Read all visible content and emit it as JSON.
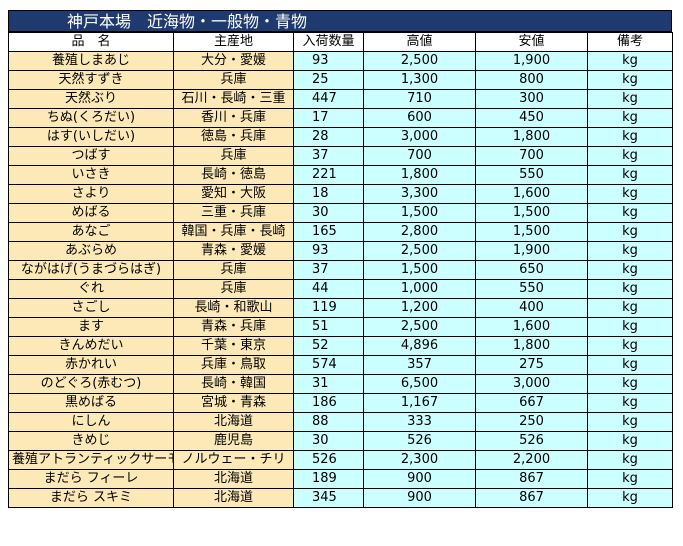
{
  "title": "神戸本場　近海物・一般物・青物",
  "headers": [
    "品　名",
    "主産地",
    "入荷数量",
    "高値",
    "安値",
    "備考"
  ],
  "rows": [
    {
      "name": "養殖しまあじ",
      "origin": "大分・愛媛",
      "qty": "93",
      "high": "2,500",
      "low": "1,900",
      "unit": "kg"
    },
    {
      "name": "天然すずき",
      "origin": "兵庫",
      "qty": "25",
      "high": "1,300",
      "low": "800",
      "unit": "kg"
    },
    {
      "name": "天然ぶり",
      "origin": "石川・長崎・三重",
      "qty": "447",
      "high": "710",
      "low": "300",
      "unit": "kg"
    },
    {
      "name": "ちぬ(くろだい)",
      "origin": "香川・兵庫",
      "qty": "17",
      "high": "600",
      "low": "450",
      "unit": "kg"
    },
    {
      "name": "はす(いしだい)",
      "origin": "徳島・兵庫",
      "qty": "28",
      "high": "3,000",
      "low": "1,800",
      "unit": "kg"
    },
    {
      "name": "つばす",
      "origin": "兵庫",
      "qty": "37",
      "high": "700",
      "low": "700",
      "unit": "kg"
    },
    {
      "name": "いさき",
      "origin": "長崎・徳島",
      "qty": "221",
      "high": "1,800",
      "low": "550",
      "unit": "kg"
    },
    {
      "name": "さより",
      "origin": "愛知・大阪",
      "qty": "18",
      "high": "3,300",
      "low": "1,600",
      "unit": "kg"
    },
    {
      "name": "めばる",
      "origin": "三重・兵庫",
      "qty": "30",
      "high": "1,500",
      "low": "1,500",
      "unit": "kg"
    },
    {
      "name": "あなご",
      "origin": "韓国・兵庫・長崎",
      "qty": "165",
      "high": "2,800",
      "low": "1,500",
      "unit": "kg"
    },
    {
      "name": "あぶらめ",
      "origin": "青森・愛媛",
      "qty": "93",
      "high": "2,500",
      "low": "1,900",
      "unit": "kg"
    },
    {
      "name": "ながはげ(うまづらはぎ)",
      "origin": "兵庫",
      "qty": "37",
      "high": "1,500",
      "low": "650",
      "unit": "kg"
    },
    {
      "name": "ぐれ",
      "origin": "兵庫",
      "qty": "44",
      "high": "1,000",
      "low": "550",
      "unit": "kg"
    },
    {
      "name": "さごし",
      "origin": "長崎・和歌山",
      "qty": "119",
      "high": "1,200",
      "low": "400",
      "unit": "kg"
    },
    {
      "name": "ます",
      "origin": "青森・兵庫",
      "qty": "51",
      "high": "2,500",
      "low": "1,600",
      "unit": "kg"
    },
    {
      "name": "きんめだい",
      "origin": "千葉・東京",
      "qty": "52",
      "high": "4,896",
      "low": "1,800",
      "unit": "kg"
    },
    {
      "name": "赤かれい",
      "origin": "兵庫・鳥取",
      "qty": "574",
      "high": "357",
      "low": "275",
      "unit": "kg"
    },
    {
      "name": "のどぐろ(赤むつ)",
      "origin": "長崎・韓国",
      "qty": "31",
      "high": "6,500",
      "low": "3,000",
      "unit": "kg"
    },
    {
      "name": "黒めばる",
      "origin": "宮城・青森",
      "qty": "186",
      "high": "1,167",
      "low": "667",
      "unit": "kg"
    },
    {
      "name": "にしん",
      "origin": "北海道",
      "qty": "88",
      "high": "333",
      "low": "250",
      "unit": "kg"
    },
    {
      "name": "きめじ",
      "origin": "鹿児島",
      "qty": "30",
      "high": "526",
      "low": "526",
      "unit": "kg"
    },
    {
      "name": "養殖アトランティックサーモン",
      "origin": "ノルウェー・チリ",
      "qty": "526",
      "high": "2,300",
      "low": "2,200",
      "unit": "kg"
    },
    {
      "name": "まだら フィーレ",
      "origin": "北海道",
      "qty": "189",
      "high": "900",
      "low": "867",
      "unit": "kg"
    },
    {
      "name": "まだら スキミ",
      "origin": "北海道",
      "qty": "345",
      "high": "900",
      "low": "867",
      "unit": "kg"
    }
  ],
  "colors": {
    "title_bg": "#1f3a6e",
    "name_bg": "#fde9b8",
    "value_bg": "#ccffff"
  }
}
